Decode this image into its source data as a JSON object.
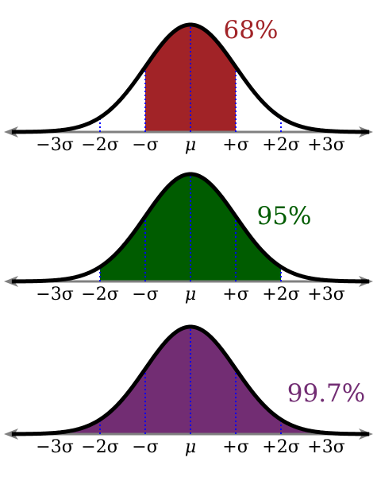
{
  "chart_data": [
    {
      "type": "area",
      "series": [
        {
          "name": "",
          "values": []
        }
      ],
      "pct_label": "68%",
      "shade_from": -1,
      "shade_to": 1,
      "fill_color": "#a12327",
      "xlim": [
        -3.9,
        3.9
      ],
      "ticks": [
        {
          "x": -3,
          "label": "−3σ"
        },
        {
          "x": -2,
          "label": "−2σ"
        },
        {
          "x": -1,
          "label": "−σ"
        },
        {
          "x": 0,
          "label": "μ"
        },
        {
          "x": 1,
          "label": "+σ"
        },
        {
          "x": 2,
          "label": "+2σ"
        },
        {
          "x": 3,
          "label": "+3σ"
        }
      ]
    },
    {
      "type": "area",
      "series": [
        {
          "name": "",
          "values": []
        }
      ],
      "pct_label": "95%",
      "shade_from": -2,
      "shade_to": 2,
      "fill_color": "#005c00",
      "xlim": [
        -3.9,
        3.9
      ],
      "ticks": [
        {
          "x": -3,
          "label": "−3σ"
        },
        {
          "x": -2,
          "label": "−2σ"
        },
        {
          "x": -1,
          "label": "−σ"
        },
        {
          "x": 0,
          "label": "μ"
        },
        {
          "x": 1,
          "label": "+σ"
        },
        {
          "x": 2,
          "label": "+2σ"
        },
        {
          "x": 3,
          "label": "+3σ"
        }
      ]
    },
    {
      "type": "area",
      "series": [
        {
          "name": "",
          "values": []
        }
      ],
      "pct_label": "99.7%",
      "shade_from": -3,
      "shade_to": 3,
      "fill_color": "#722d73",
      "xlim": [
        -3.9,
        3.9
      ],
      "ticks": [
        {
          "x": -3,
          "label": "−3σ"
        },
        {
          "x": -2,
          "label": "−2σ"
        },
        {
          "x": -1,
          "label": "−σ"
        },
        {
          "x": 0,
          "label": "μ"
        },
        {
          "x": 1,
          "label": "+σ"
        },
        {
          "x": 2,
          "label": "+2σ"
        },
        {
          "x": 3,
          "label": "+3σ"
        }
      ]
    }
  ],
  "colors": {
    "curve": "#000000",
    "axis": "#808080",
    "sigma_lines": "#0000ff",
    "label_68": "#a12327",
    "label_95": "#005c00",
    "label_997": "#722d73"
  }
}
